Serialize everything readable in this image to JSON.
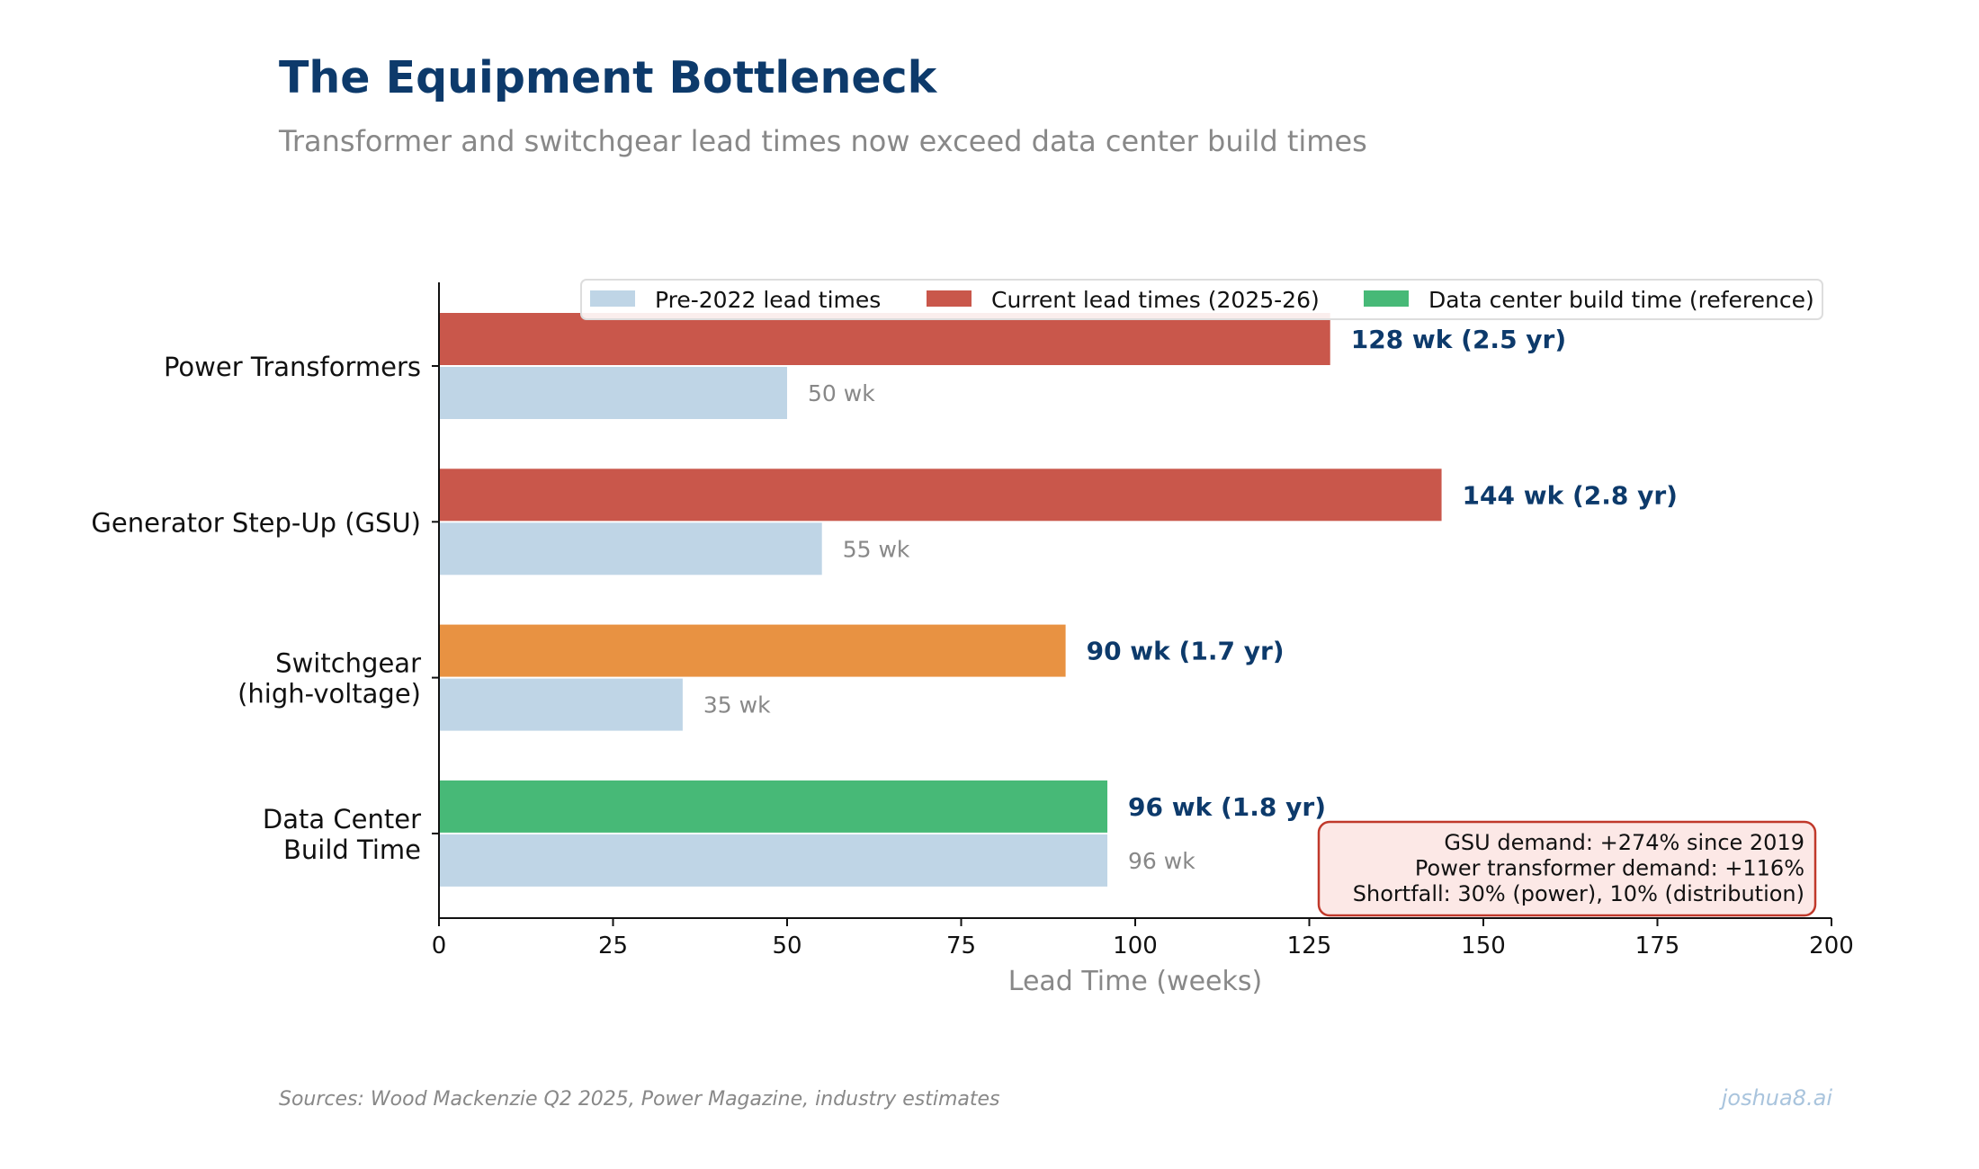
{
  "title": "The Equipment Bottleneck",
  "subtitle": "Transformer and switchgear lead times now exceed data center build times",
  "source": "Sources: Wood Mackenzie Q2 2025, Power Magazine, industry estimates",
  "brand": "joshua8.ai",
  "annotation": [
    "GSU demand: +274% since 2019",
    "Power transformer demand: +116%",
    "Shortfall: 30% (power), 10% (distribution)"
  ],
  "colors": {
    "pre": "#bfd5e6",
    "current_red": "#c9574b",
    "current_orange": "#e89242",
    "build_green": "#47b977",
    "label_navy": "#0d3a6b",
    "annotation_border": "#c0392b",
    "annotation_fill": "#fce8e6"
  },
  "chart_data": {
    "type": "bar",
    "orientation": "horizontal",
    "categories": [
      [
        "Power Transformers"
      ],
      [
        "Generator Step-Up (GSU)"
      ],
      [
        "Switchgear",
        "(high-voltage)"
      ],
      [
        "Data Center",
        "Build Time"
      ]
    ],
    "series": [
      {
        "name": "Pre-2022 lead times",
        "values": [
          50,
          55,
          35,
          96
        ],
        "labels": [
          "50 wk",
          "55 wk",
          "35 wk",
          "96 wk"
        ],
        "colors": [
          "#bfd5e6",
          "#bfd5e6",
          "#bfd5e6",
          "#bfd5e6"
        ]
      },
      {
        "name": "Current lead times (2025-26)",
        "values": [
          128,
          144,
          90,
          96
        ],
        "labels": [
          "128 wk (2.5 yr)",
          "144 wk (2.8 yr)",
          "90 wk (1.7 yr)",
          "96 wk (1.8 yr)"
        ],
        "colors": [
          "#c9574b",
          "#c9574b",
          "#e89242",
          "#47b977"
        ]
      }
    ],
    "legend": [
      {
        "label": "Pre-2022 lead times",
        "color": "#bfd5e6"
      },
      {
        "label": "Current lead times (2025-26)",
        "color": "#c9574b"
      },
      {
        "label": "Data center build time (reference)",
        "color": "#47b977"
      }
    ],
    "legend_position": "top-right",
    "xlabel": "Lead Time (weeks)",
    "xlim": [
      0,
      200
    ],
    "xticks": [
      0,
      25,
      50,
      75,
      100,
      125,
      150,
      175,
      200
    ],
    "grid": false
  }
}
